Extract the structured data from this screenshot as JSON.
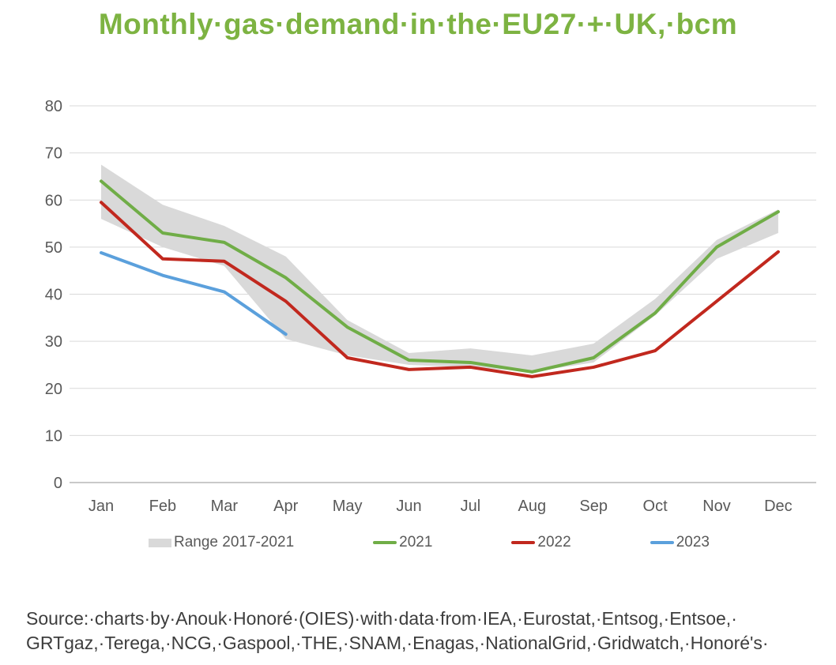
{
  "title": "Monthly·gas·demand·in·the·EU27·+·UK,·bcm",
  "colors": {
    "title": "#7db342",
    "grid": "#d9d9d9",
    "axis_line": "#b7b7b7",
    "axis_label": "#595959",
    "legend_label": "#595959",
    "source_text": "#3d3d3d",
    "background": "#ffffff",
    "band": "#d9d9d9",
    "series_2021": "#70ad47",
    "series_2022": "#c1281e",
    "series_2023": "#5ba0dc"
  },
  "chart_data": {
    "type": "line",
    "title": "Monthly gas demand in the EU27 + UK, bcm",
    "categories": [
      "Jan",
      "Feb",
      "Mar",
      "Apr",
      "May",
      "Jun",
      "Jul",
      "Aug",
      "Sep",
      "Oct",
      "Nov",
      "Dec"
    ],
    "xlabel": "",
    "ylabel": "",
    "unit": "bcm",
    "ylim": [
      0,
      80
    ],
    "yticks": [
      0,
      10,
      20,
      30,
      40,
      50,
      60,
      70,
      80
    ],
    "grid": "horizontal-only",
    "legend_position": "bottom",
    "band": {
      "name": "Range 2017-2021",
      "color": "#d9d9d9",
      "min": [
        56,
        50,
        46,
        30.5,
        27,
        25,
        24.5,
        23.5,
        25.5,
        35.5,
        47.5,
        53
      ],
      "max": [
        67.5,
        59,
        54.5,
        48,
        34.5,
        27.5,
        28.5,
        27,
        29.5,
        39,
        51.5,
        58
      ]
    },
    "series": [
      {
        "name": "2021",
        "color": "#70ad47",
        "values": [
          64,
          53,
          51,
          43.5,
          33,
          26,
          25.5,
          23.5,
          26.5,
          36,
          50,
          57.5
        ]
      },
      {
        "name": "2022",
        "color": "#c1281e",
        "values": [
          59.5,
          47.5,
          47,
          38.5,
          26.5,
          24,
          24.5,
          22.5,
          24.5,
          28,
          38.5,
          49
        ]
      },
      {
        "name": "2023",
        "color": "#5ba0dc",
        "values": [
          48.8,
          44,
          40.5,
          31.5
        ]
      }
    ]
  },
  "legend": {
    "items": [
      {
        "label": "Range 2017-2021",
        "swatch": "band",
        "color": "#d9d9d9"
      },
      {
        "label": "2021",
        "swatch": "line",
        "color": "#70ad47"
      },
      {
        "label": "2022",
        "swatch": "line",
        "color": "#c1281e"
      },
      {
        "label": "2023",
        "swatch": "line",
        "color": "#5ba0dc"
      }
    ]
  },
  "source": {
    "line1": "Source:·charts·by·Anouk·Honoré·(OIES)·with·data·from·IEA,·Eurostat,·Entsog,·Entsoe,·",
    "line2": "GRTgaz,·Terega,·NCG,·Gaspool,·THE,·SNAM,·Enagas,·NationalGrid,·Gridwatch,·Honoré's·"
  }
}
